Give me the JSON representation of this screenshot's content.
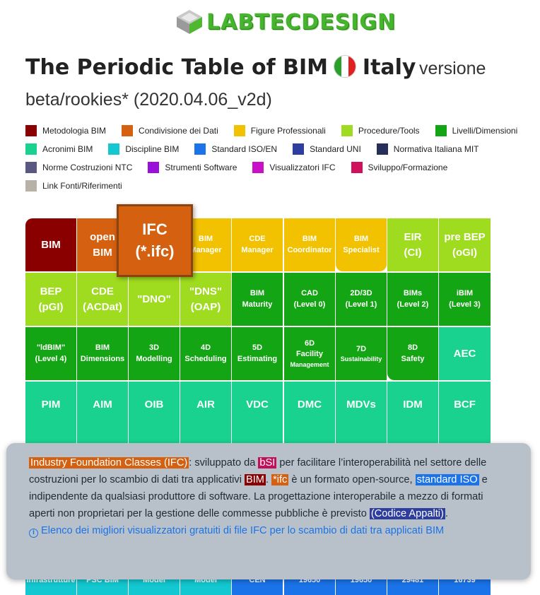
{
  "brand": {
    "logo_text": "LABTECDESIGN"
  },
  "title": {
    "main": "The Periodic Table of BIM",
    "country": "Italy",
    "version": "versione",
    "subtitle": "beta/rookies* (2020.04.06_v2d)"
  },
  "legend": [
    [
      {
        "label": "Metodologia BIM",
        "color": "#8a0000"
      },
      {
        "label": "Condivisione dei Dati",
        "color": "#d46010"
      },
      {
        "label": "Figure Professionali",
        "color": "#f2c200"
      },
      {
        "label": "Procedure/Tools",
        "color": "#9fdc1f"
      },
      {
        "label": "Livelli/Dimensioni",
        "color": "#14a514"
      }
    ],
    [
      {
        "label": "Acronimi BIM",
        "color": "#19d28f"
      },
      {
        "label": "Discipline BIM",
        "color": "#13c8d0"
      },
      {
        "label": "Standard ISO/EN",
        "color": "#1a73e8"
      },
      {
        "label": "Standard UNI",
        "color": "#2e3e9e"
      },
      {
        "label": "Normativa Italiana MIT",
        "color": "#25305a"
      }
    ],
    [
      {
        "label": "Norme Costruzioni NTC",
        "color": "#585880"
      },
      {
        "label": "Strumenti Software",
        "color": "#9b10d8"
      },
      {
        "label": "Visualizzatori IFC",
        "color": "#c810c8"
      },
      {
        "label": "Sviluppo/Formazione",
        "color": "#d0105a"
      }
    ],
    [
      {
        "label": "Link Fonti/Riferimenti",
        "color": "#b8b2a6"
      }
    ]
  ],
  "table": {
    "row1": [
      {
        "l1": "BIM",
        "l2": "",
        "type": "metod",
        "big": true
      },
      {
        "l1": "open",
        "l2": "BIM",
        "type": "cond",
        "big": true
      },
      {
        "l1": "",
        "l2": "",
        "type": "cond",
        "big": true
      },
      {
        "l1": "BIM",
        "l2": "Manager",
        "type": "fig",
        "big": false
      },
      {
        "l1": "CDE",
        "l2": "Manager",
        "type": "fig",
        "big": false
      },
      {
        "l1": "BIM",
        "l2": "Coordinator",
        "type": "fig",
        "big": false
      },
      {
        "l1": "BIM",
        "l2": "Specialist",
        "type": "fig",
        "big": false
      },
      {
        "l1": "EIR",
        "l2": "(CI)",
        "type": "proc",
        "big": true
      },
      {
        "l1": "pre BEP",
        "l2": "(oGI)",
        "type": "proc",
        "big": true
      }
    ],
    "ifc_popup": {
      "l1": "IFC",
      "l2": "(*.ifc)"
    },
    "row2": [
      {
        "l1": "BEP",
        "l2": "(pGI)",
        "type": "proc",
        "big": true
      },
      {
        "l1": "CDE",
        "l2": "(ACDat)",
        "type": "proc",
        "big": true
      },
      {
        "l1": "\"DNO\"",
        "l2": "",
        "type": "proc",
        "big": true
      },
      {
        "l1": "\"DNS\"",
        "l2": "(OAP)",
        "type": "proc",
        "big": true
      },
      {
        "l1": "BIM",
        "l2": "Maturity",
        "type": "liv",
        "big": false
      },
      {
        "l1": "CAD",
        "l2": "(Level 0)",
        "type": "liv",
        "big": false
      },
      {
        "l1": "2D/3D",
        "l2": "(Level 1)",
        "type": "liv",
        "big": false
      },
      {
        "l1": "BIMs",
        "l2": "(Level 2)",
        "type": "liv",
        "big": false
      },
      {
        "l1": "iBIM",
        "l2": "(Level 3)",
        "type": "liv",
        "big": false
      }
    ],
    "row3": [
      {
        "l1": "\"ldBIM\"",
        "l2": "(Level 4)",
        "type": "liv",
        "big": false
      },
      {
        "l1": "BIM",
        "l2": "Dimensions",
        "type": "liv",
        "big": false
      },
      {
        "l1": "3D",
        "l2": "Modelling",
        "type": "liv",
        "big": false
      },
      {
        "l1": "4D",
        "l2": "Scheduling",
        "type": "liv",
        "big": false
      },
      {
        "l1": "5D",
        "l2": "Estimating",
        "type": "liv",
        "big": false
      },
      {
        "l1": "6D",
        "l2": "Facility",
        "l3": "Management",
        "type": "liv",
        "big": false
      },
      {
        "l1": "7D",
        "l2": "Sustainability",
        "type": "liv",
        "big": false
      },
      {
        "l1": "8D",
        "l2": "Safety",
        "type": "liv",
        "big": false
      },
      {
        "l1": "AEC",
        "l2": "",
        "type": "acr",
        "big": true
      }
    ],
    "row4": [
      {
        "l1": "PIM",
        "type": "acr"
      },
      {
        "l1": "AIM",
        "type": "acr"
      },
      {
        "l1": "OIB",
        "type": "acr"
      },
      {
        "l1": "AIR",
        "type": "acr"
      },
      {
        "l1": "VDC",
        "type": "acr"
      },
      {
        "l1": "DMC",
        "type": "acr"
      },
      {
        "l1": "MDVs",
        "type": "acr"
      },
      {
        "l1": "IDM",
        "type": "acr"
      },
      {
        "l1": "BCF",
        "type": "acr"
      }
    ],
    "row_bottom": [
      {
        "l1": "Infrastrutture",
        "type": "disc"
      },
      {
        "l1": "PSC BIM",
        "type": "disc"
      },
      {
        "l1": "Model",
        "type": "disc"
      },
      {
        "l1": "Model",
        "type": "disc"
      },
      {
        "l1": "CEN",
        "type": "iso"
      },
      {
        "l1": "19650",
        "type": "iso"
      },
      {
        "l1": "19650",
        "type": "iso"
      },
      {
        "l1": "29481",
        "type": "iso"
      },
      {
        "l1": "16739",
        "type": "iso"
      }
    ]
  },
  "tooltip": {
    "term": "Industry Foundation Classes (IFC)",
    "t1": ": sviluppato da ",
    "bsi": "bSI",
    "t2": " per facilitare l’interoperabilità nel settore delle costruzioni per lo scambio di dati tra applicativi ",
    "bim": "BIM",
    "t3": ". ",
    "ifc": "*ifc",
    "t4": " è un formato open-source, ",
    "iso": "standard ISO",
    "t5": " e indipendente da qualsiasi produttore di software. La progettazione interoperabile a mezzo di formati aperti non proprietari per la gestione delle commesse pubbliche è previsto ",
    "appalti": "(Codice Appalti)",
    "t6": ".",
    "link": "Elenco dei migliori visualizzatori gratuiti di file IFC per lo scambio di dati tra applicati BIM"
  }
}
